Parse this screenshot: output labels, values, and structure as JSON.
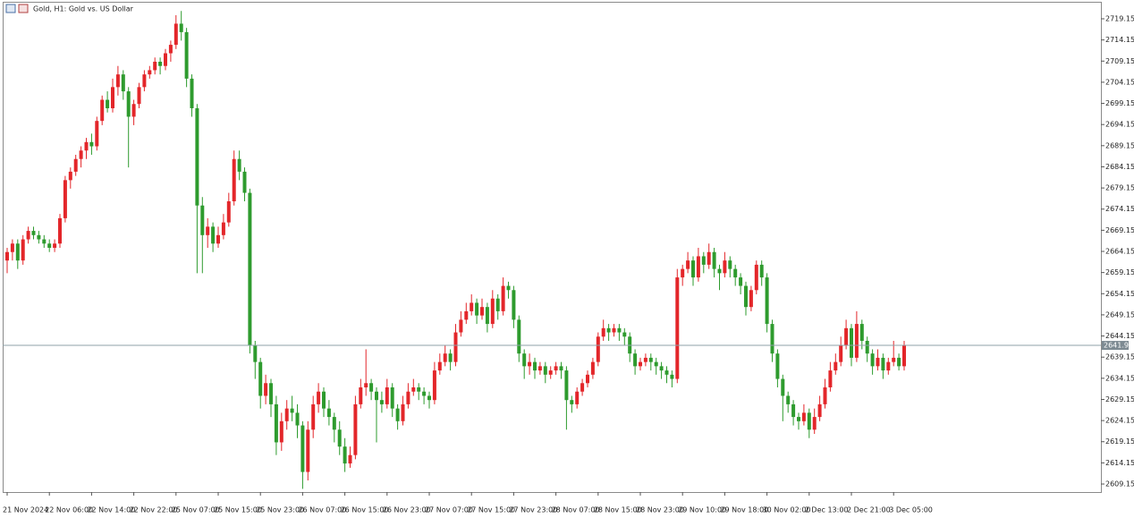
{
  "chart_data": {
    "type": "candlestick",
    "title": "Gold, H1:  Gold vs. US Dollar",
    "up_color": "#e3262a",
    "down_color": "#2e9b2e",
    "last_price_line": true,
    "ylim": [
      2607.25,
      2722.96
    ],
    "yticks": [
      2609.15,
      2614.15,
      2619.15,
      2624.15,
      2629.15,
      2634.15,
      2639.15,
      2644.15,
      2649.15,
      2654.15,
      2659.15,
      2664.15,
      2669.15,
      2674.15,
      2679.15,
      2684.15,
      2689.15,
      2694.15,
      2699.15,
      2704.15,
      2709.15,
      2714.15,
      2719.15
    ],
    "categories": [
      "21 Nov 2024",
      null,
      null,
      null,
      null,
      null,
      null,
      null,
      "22 Nov 06:00",
      null,
      null,
      null,
      null,
      null,
      null,
      null,
      "22 Nov 14:00",
      null,
      null,
      null,
      null,
      null,
      null,
      null,
      "22 Nov 22:00",
      null,
      null,
      null,
      null,
      null,
      null,
      null,
      "25 Nov 07:00",
      null,
      null,
      null,
      null,
      null,
      null,
      null,
      "25 Nov 15:00",
      null,
      null,
      null,
      null,
      null,
      null,
      null,
      "25 Nov 23:00",
      null,
      null,
      null,
      null,
      null,
      null,
      null,
      "26 Nov 07:00",
      null,
      null,
      null,
      null,
      null,
      null,
      null,
      "26 Nov 15:00",
      null,
      null,
      null,
      null,
      null,
      null,
      null,
      "26 Nov 23:00",
      null,
      null,
      null,
      null,
      null,
      null,
      null,
      "27 Nov 07:00",
      null,
      null,
      null,
      null,
      null,
      null,
      null,
      "27 Nov 15:00",
      null,
      null,
      null,
      null,
      null,
      null,
      null,
      "27 Nov 23:00",
      null,
      null,
      null,
      null,
      null,
      null,
      null,
      "28 Nov 07:00",
      null,
      null,
      null,
      null,
      null,
      null,
      null,
      "28 Nov 15:00",
      null,
      null,
      null,
      null,
      null,
      null,
      null,
      "28 Nov 23:00",
      null,
      null,
      null,
      null,
      null,
      null,
      null,
      "29 Nov 10:00",
      null,
      null,
      null,
      null,
      null,
      null,
      null,
      "29 Nov 18:00",
      null,
      null,
      null,
      null,
      null,
      null,
      null,
      "30 Nov 02:00",
      null,
      null,
      null,
      null,
      null,
      null,
      null,
      "2 Dec 13:00",
      null,
      null,
      null,
      null,
      null,
      null,
      null,
      "2 Dec 21:00",
      null,
      null,
      null,
      null,
      null,
      null,
      null,
      "3 Dec 05:00",
      null,
      null
    ],
    "ohlc": [
      [
        2662,
        2665,
        2659,
        2664
      ],
      [
        2664,
        2667,
        2662,
        2666
      ],
      [
        2666,
        2667,
        2660,
        2662
      ],
      [
        2662,
        2668,
        2661,
        2667
      ],
      [
        2667,
        2670,
        2666,
        2669
      ],
      [
        2669,
        2670,
        2667,
        2668
      ],
      [
        2668,
        2669,
        2666,
        2667
      ],
      [
        2667,
        2668,
        2665,
        2666
      ],
      [
        2666,
        2667,
        2664,
        2665
      ],
      [
        2665,
        2667,
        2664,
        2666
      ],
      [
        2666,
        2673,
        2665,
        2672
      ],
      [
        2672,
        2682,
        2671,
        2681
      ],
      [
        2681,
        2684,
        2679,
        2683
      ],
      [
        2683,
        2687,
        2682,
        2686
      ],
      [
        2686,
        2689,
        2684,
        2688
      ],
      [
        2688,
        2691,
        2686,
        2690
      ],
      [
        2690,
        2692,
        2687,
        2689
      ],
      [
        2689,
        2696,
        2688,
        2695
      ],
      [
        2695,
        2701,
        2694,
        2700
      ],
      [
        2700,
        2702,
        2697,
        2698
      ],
      [
        2698,
        2705,
        2697,
        2703
      ],
      [
        2703,
        2708,
        2701,
        2706
      ],
      [
        2706,
        2707,
        2700,
        2702
      ],
      [
        2702,
        2703,
        2684,
        2696
      ],
      [
        2696,
        2700,
        2694,
        2699
      ],
      [
        2699,
        2704,
        2698,
        2703
      ],
      [
        2703,
        2707,
        2702,
        2706
      ],
      [
        2706,
        2708,
        2705,
        2707
      ],
      [
        2707,
        2710,
        2706,
        2709
      ],
      [
        2709,
        2710,
        2706,
        2708
      ],
      [
        2708,
        2712,
        2707,
        2711
      ],
      [
        2711,
        2714,
        2709,
        2713
      ],
      [
        2713,
        2720,
        2712,
        2718
      ],
      [
        2718,
        2721,
        2714,
        2716
      ],
      [
        2716,
        2717,
        2703,
        2705
      ],
      [
        2705,
        2706,
        2696,
        2698
      ],
      [
        2698,
        2699,
        2659,
        2675
      ],
      [
        2675,
        2677,
        2659,
        2668
      ],
      [
        2668,
        2672,
        2665,
        2670
      ],
      [
        2670,
        2671,
        2664,
        2666
      ],
      [
        2666,
        2670,
        2665,
        2668
      ],
      [
        2668,
        2673,
        2667,
        2671
      ],
      [
        2671,
        2678,
        2670,
        2676
      ],
      [
        2676,
        2688,
        2675,
        2686
      ],
      [
        2686,
        2688,
        2681,
        2683
      ],
      [
        2683,
        2684,
        2676,
        2678
      ],
      [
        2678,
        2679,
        2640,
        2642
      ],
      [
        2642,
        2643,
        2634,
        2638
      ],
      [
        2638,
        2639,
        2627,
        2630
      ],
      [
        2630,
        2635,
        2628,
        2633
      ],
      [
        2633,
        2634,
        2625,
        2628
      ],
      [
        2628,
        2630,
        2616,
        2619
      ],
      [
        2619,
        2626,
        2617,
        2624
      ],
      [
        2624,
        2629,
        2622,
        2627
      ],
      [
        2627,
        2630,
        2624,
        2626
      ],
      [
        2626,
        2628,
        2620,
        2623
      ],
      [
        2623,
        2624,
        2608,
        2612
      ],
      [
        2612,
        2624,
        2610,
        2622
      ],
      [
        2622,
        2630,
        2620,
        2628
      ],
      [
        2628,
        2633,
        2626,
        2631
      ],
      [
        2631,
        2632,
        2625,
        2627
      ],
      [
        2627,
        2629,
        2623,
        2625
      ],
      [
        2625,
        2626,
        2619,
        2622
      ],
      [
        2622,
        2624,
        2616,
        2618
      ],
      [
        2618,
        2620,
        2612,
        2614
      ],
      [
        2614,
        2618,
        2613,
        2616
      ],
      [
        2616,
        2630,
        2615,
        2628
      ],
      [
        2628,
        2634,
        2627,
        2632
      ],
      [
        2632,
        2641,
        2630,
        2633
      ],
      [
        2633,
        2634,
        2629,
        2631
      ],
      [
        2631,
        2632,
        2619,
        2629
      ],
      [
        2629,
        2631,
        2626,
        2628
      ],
      [
        2628,
        2634,
        2627,
        2632
      ],
      [
        2632,
        2633,
        2625,
        2627
      ],
      [
        2627,
        2628,
        2622,
        2624
      ],
      [
        2624,
        2630,
        2623,
        2628
      ],
      [
        2628,
        2633,
        2627,
        2631
      ],
      [
        2631,
        2634,
        2630,
        2632
      ],
      [
        2632,
        2633,
        2629,
        2631
      ],
      [
        2631,
        2632,
        2628,
        2630
      ],
      [
        2630,
        2631,
        2627,
        2629
      ],
      [
        2629,
        2638,
        2628,
        2636
      ],
      [
        2636,
        2640,
        2635,
        2638
      ],
      [
        2638,
        2642,
        2637,
        2640
      ],
      [
        2640,
        2641,
        2636,
        2638
      ],
      [
        2638,
        2647,
        2637,
        2645
      ],
      [
        2645,
        2650,
        2644,
        2648
      ],
      [
        2648,
        2652,
        2647,
        2650
      ],
      [
        2650,
        2654,
        2649,
        2652
      ],
      [
        2652,
        2653,
        2647,
        2649
      ],
      [
        2649,
        2653,
        2648,
        2651
      ],
      [
        2651,
        2652,
        2645,
        2647
      ],
      [
        2647,
        2655,
        2646,
        2653
      ],
      [
        2653,
        2654,
        2648,
        2650
      ],
      [
        2650,
        2658,
        2649,
        2656
      ],
      [
        2656,
        2657,
        2653,
        2655
      ],
      [
        2655,
        2656,
        2646,
        2648
      ],
      [
        2648,
        2649,
        2638,
        2640
      ],
      [
        2640,
        2641,
        2634,
        2637
      ],
      [
        2637,
        2640,
        2635,
        2638
      ],
      [
        2638,
        2639,
        2634,
        2636
      ],
      [
        2636,
        2638,
        2635,
        2637
      ],
      [
        2637,
        2638,
        2633,
        2635
      ],
      [
        2635,
        2637,
        2634,
        2636
      ],
      [
        2636,
        2638,
        2635,
        2637
      ],
      [
        2637,
        2638,
        2634,
        2636
      ],
      [
        2636,
        2637,
        2622,
        2629
      ],
      [
        2629,
        2630,
        2626,
        2628
      ],
      [
        2628,
        2632,
        2627,
        2631
      ],
      [
        2631,
        2634,
        2630,
        2633
      ],
      [
        2633,
        2636,
        2632,
        2635
      ],
      [
        2635,
        2639,
        2634,
        2638
      ],
      [
        2638,
        2645,
        2637,
        2644
      ],
      [
        2644,
        2648,
        2643,
        2646
      ],
      [
        2646,
        2647,
        2643,
        2645
      ],
      [
        2645,
        2647,
        2644,
        2646
      ],
      [
        2646,
        2647,
        2643,
        2645
      ],
      [
        2645,
        2646,
        2642,
        2644
      ],
      [
        2644,
        2645,
        2638,
        2640
      ],
      [
        2640,
        2641,
        2635,
        2637
      ],
      [
        2637,
        2639,
        2636,
        2638
      ],
      [
        2638,
        2640,
        2637,
        2639
      ],
      [
        2639,
        2640,
        2636,
        2638
      ],
      [
        2638,
        2639,
        2635,
        2637
      ],
      [
        2637,
        2638,
        2634,
        2636
      ],
      [
        2636,
        2637,
        2633,
        2635
      ],
      [
        2635,
        2636,
        2632,
        2634
      ],
      [
        2634,
        2660,
        2633,
        2658
      ],
      [
        2658,
        2661,
        2656,
        2660
      ],
      [
        2660,
        2664,
        2659,
        2662
      ],
      [
        2662,
        2663,
        2656,
        2658
      ],
      [
        2658,
        2665,
        2657,
        2663
      ],
      [
        2663,
        2664,
        2659,
        2661
      ],
      [
        2661,
        2666,
        2660,
        2664
      ],
      [
        2664,
        2665,
        2658,
        2660
      ],
      [
        2660,
        2661,
        2655,
        2659
      ],
      [
        2659,
        2664,
        2658,
        2662
      ],
      [
        2662,
        2663,
        2658,
        2660
      ],
      [
        2660,
        2661,
        2656,
        2658
      ],
      [
        2658,
        2659,
        2654,
        2656
      ],
      [
        2656,
        2657,
        2649,
        2651
      ],
      [
        2651,
        2656,
        2650,
        2655
      ],
      [
        2655,
        2662,
        2654,
        2661
      ],
      [
        2661,
        2662,
        2656,
        2658
      ],
      [
        2658,
        2659,
        2645,
        2647
      ],
      [
        2647,
        2648,
        2638,
        2640
      ],
      [
        2640,
        2641,
        2632,
        2634
      ],
      [
        2634,
        2635,
        2624,
        2630
      ],
      [
        2630,
        2631,
        2626,
        2628
      ],
      [
        2628,
        2629,
        2623,
        2625
      ],
      [
        2625,
        2626,
        2622,
        2624
      ],
      [
        2624,
        2628,
        2623,
        2626
      ],
      [
        2626,
        2627,
        2620,
        2622
      ],
      [
        2622,
        2627,
        2621,
        2625
      ],
      [
        2625,
        2630,
        2624,
        2628
      ],
      [
        2628,
        2634,
        2627,
        2632
      ],
      [
        2632,
        2638,
        2631,
        2636
      ],
      [
        2636,
        2640,
        2635,
        2638
      ],
      [
        2638,
        2644,
        2637,
        2642
      ],
      [
        2642,
        2648,
        2641,
        2646
      ],
      [
        2646,
        2647,
        2637,
        2639
      ],
      [
        2639,
        2650,
        2638,
        2647
      ],
      [
        2647,
        2648,
        2641,
        2643
      ],
      [
        2643,
        2644,
        2638,
        2640
      ],
      [
        2640,
        2641,
        2635,
        2637
      ],
      [
        2637,
        2641,
        2636,
        2639
      ],
      [
        2639,
        2640,
        2634,
        2636
      ],
      [
        2636,
        2639,
        2635,
        2638
      ],
      [
        2638,
        2643,
        2637,
        2639
      ],
      [
        2639,
        2640,
        2636,
        2637
      ],
      [
        2637,
        2643,
        2636,
        2641.93
      ]
    ]
  }
}
